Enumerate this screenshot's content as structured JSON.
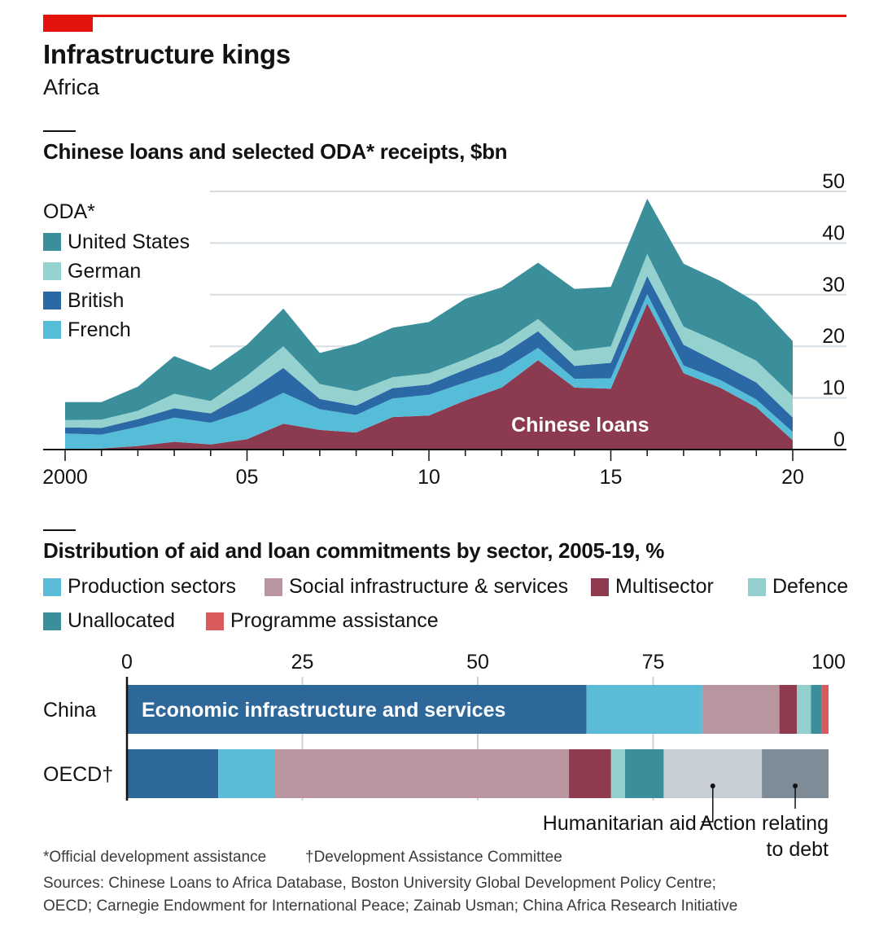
{
  "title": "Infrastructure kings",
  "subtitle": "Africa",
  "colors": {
    "chinese_loans": "#8c3a4f",
    "french": "#56bdd9",
    "british": "#2a68a6",
    "german": "#95d1cf",
    "united_states": "#3a8f9b",
    "economic_infra": "#2e689a",
    "production": "#5cbcd8",
    "social": "#b8959f",
    "multisector": "#8f3a4e",
    "defence": "#93d0cd",
    "unallocated": "#3a8f9b",
    "humanitarian": "#c8ced5",
    "debt": "#7d8c96",
    "programme": "#d85a5a"
  },
  "chart_data": [
    {
      "type": "area",
      "stacked": true,
      "title": "Chinese loans and selected ODA* receipts, $bn",
      "legend_title": "ODA*",
      "legend": [
        "United States",
        "German",
        "British",
        "French"
      ],
      "x": [
        2000,
        2001,
        2002,
        2003,
        2004,
        2005,
        2006,
        2007,
        2008,
        2009,
        2010,
        2011,
        2012,
        2013,
        2014,
        2015,
        2016,
        2017,
        2018,
        2019,
        2020
      ],
      "xtick_values": [
        2000,
        2005,
        2010,
        2015,
        2020
      ],
      "xtick_labels": [
        "2000",
        "05",
        "10",
        "15",
        "20"
      ],
      "ylim": [
        0,
        50
      ],
      "yticks": [
        "0",
        "10",
        "20",
        "30",
        "40",
        "50"
      ],
      "ytick_values": [
        0,
        10,
        20,
        30,
        40,
        50
      ],
      "annotation": "Chinese loans",
      "series": [
        {
          "name": "Chinese loans",
          "key": "chinese_loans",
          "values": [
            0.1,
            0.2,
            0.7,
            1.5,
            1.0,
            2.0,
            5.0,
            3.8,
            3.3,
            6.3,
            6.6,
            9.5,
            12.0,
            17.3,
            12.0,
            11.8,
            28.3,
            14.8,
            12.0,
            8.2,
            1.8
          ]
        },
        {
          "name": "French",
          "key": "french",
          "values": [
            3.0,
            2.7,
            3.7,
            4.7,
            4.2,
            5.5,
            6.0,
            4.0,
            3.4,
            3.6,
            4.0,
            3.5,
            3.3,
            2.4,
            1.7,
            2.0,
            1.8,
            1.5,
            1.5,
            1.5,
            1.6
          ]
        },
        {
          "name": "British",
          "key": "british",
          "values": [
            1.2,
            1.3,
            1.5,
            1.8,
            1.8,
            3.5,
            4.8,
            2.0,
            1.8,
            2.0,
            2.0,
            2.5,
            3.0,
            3.2,
            2.5,
            3.0,
            3.5,
            4.0,
            3.2,
            3.3,
            2.8
          ]
        },
        {
          "name": "German",
          "key": "german",
          "values": [
            1.4,
            1.6,
            1.6,
            2.8,
            2.4,
            3.3,
            4.2,
            2.9,
            2.8,
            2.1,
            2.2,
            2.0,
            2.3,
            2.4,
            2.9,
            3.2,
            4.3,
            3.5,
            4.0,
            4.2,
            4.2
          ]
        },
        {
          "name": "United States",
          "key": "united_states",
          "values": [
            3.5,
            3.4,
            4.7,
            7.3,
            6.0,
            6.0,
            7.3,
            6.0,
            9.2,
            9.6,
            9.9,
            11.7,
            10.8,
            10.9,
            12.0,
            11.5,
            10.7,
            12.2,
            12.0,
            11.3,
            10.6
          ]
        }
      ]
    },
    {
      "type": "bar",
      "orientation": "horizontal",
      "stacked": true,
      "title": "Distribution of aid and loan commitments by sector, 2005-19, %",
      "categories": [
        "China",
        "OECD†"
      ],
      "xlim": [
        0,
        100
      ],
      "xticks": [
        "0",
        "25",
        "50",
        "75",
        "100"
      ],
      "xtick_values": [
        0,
        25,
        50,
        75,
        100
      ],
      "legend": [
        "Production sectors",
        "Social infrastructure & services",
        "Multisector",
        "Defence",
        "Unallocated",
        "Programme assistance"
      ],
      "series": [
        {
          "name": "Economic infrastructure and services",
          "key": "economic_infra",
          "values": [
            65.5,
            13.0
          ]
        },
        {
          "name": "Production sectors",
          "key": "production",
          "values": [
            16.5,
            8.0
          ]
        },
        {
          "name": "Social infrastructure & services",
          "key": "social",
          "values": [
            11.0,
            42.0
          ]
        },
        {
          "name": "Multisector",
          "key": "multisector",
          "values": [
            2.5,
            6.0
          ]
        },
        {
          "name": "Defence",
          "key": "defence",
          "values": [
            2.0,
            2.0
          ]
        },
        {
          "name": "Unallocated",
          "key": "unallocated",
          "values": [
            1.5,
            5.5
          ]
        },
        {
          "name": "Programme assistance",
          "key": "programme",
          "values": [
            1.0,
            0.0
          ]
        },
        {
          "name": "Humanitarian aid",
          "key": "humanitarian",
          "values": [
            0.0,
            14.0
          ]
        },
        {
          "name": "Action relating to debt",
          "key": "debt",
          "values": [
            0.0,
            9.5
          ]
        }
      ],
      "annotations": {
        "inside_label": "Economic infrastructure and services",
        "humanitarian": "Humanitarian aid",
        "debt_line1": "Action relating",
        "debt_line2": "to debt"
      }
    }
  ],
  "footnotes": {
    "oda": "*Official development assistance",
    "dac": "†Development Assistance Committee",
    "sources_line1": "Sources: Chinese Loans to Africa Database, Boston University Global Development Policy Centre;",
    "sources_line2": "OECD; Carnegie Endowment for International Peace; Zainab Usman; China Africa Research Initiative"
  }
}
